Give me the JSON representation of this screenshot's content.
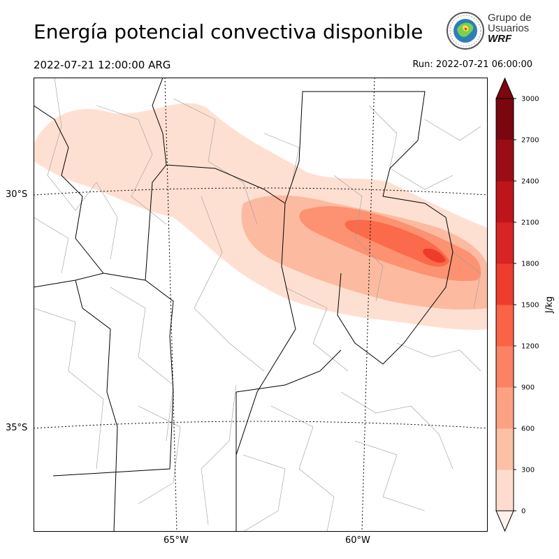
{
  "header": {
    "title": "Energía potencial convectiva disponible",
    "valid_time": "2022-07-21 12:00:00 ARG",
    "run_time": "Run: 2022-07-21 06:00:00"
  },
  "logo": {
    "line1": "Grupo de",
    "line2": "Usuarios",
    "line3": "WRF"
  },
  "map": {
    "lat_labels": [
      "30°S",
      "35°S"
    ],
    "lon_labels": [
      "65°W",
      "60°W"
    ],
    "fill_colors": [
      "#fee0d2",
      "#fcbba1",
      "#fc9272",
      "#fb6a4a",
      "#ef3b2c"
    ]
  },
  "colorbar": {
    "label": "J/kg",
    "ticks": [
      "0",
      "300",
      "600",
      "900",
      "1200",
      "1500",
      "1800",
      "2100",
      "2400",
      "2700",
      "3000"
    ],
    "colors": [
      "#fff0ea",
      "#fedccd",
      "#fcc0a6",
      "#fca283",
      "#fb8263",
      "#f96346",
      "#ee3d2d",
      "#d92424",
      "#bd151a",
      "#9b0d14",
      "#7a0610"
    ]
  }
}
